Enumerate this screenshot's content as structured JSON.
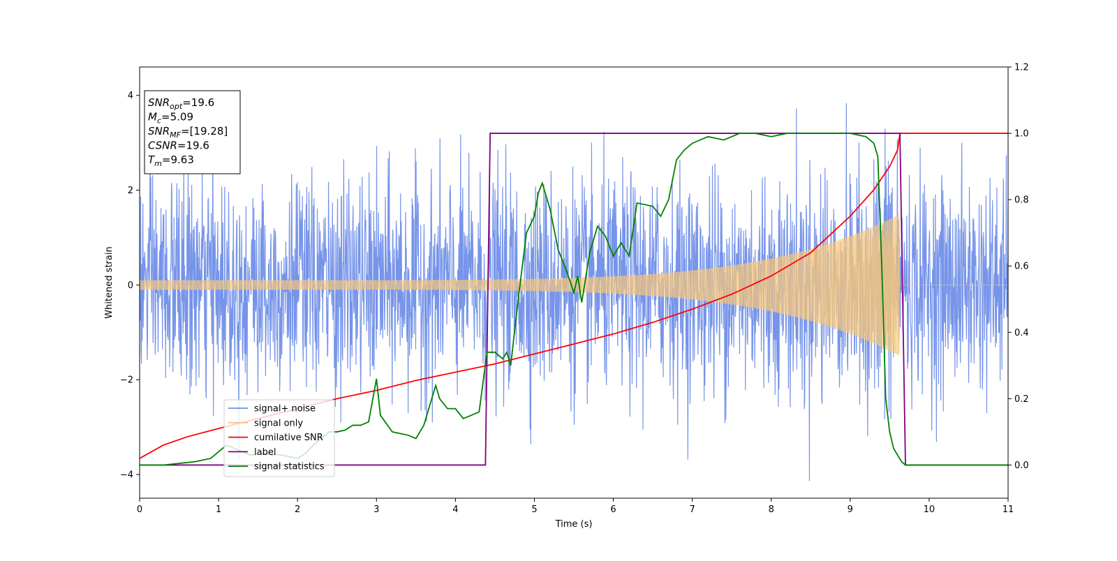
{
  "chart_data": {
    "type": "line",
    "xlabel": "Time (s)",
    "ylabel": "Whitened strain",
    "xlim": [
      0,
      11
    ],
    "ylim_left": [
      -4.5,
      4.6
    ],
    "ylim_right": [
      -0.1,
      1.2
    ],
    "xticks": [
      "0",
      "1",
      "2",
      "3",
      "4",
      "5",
      "6",
      "7",
      "8",
      "9",
      "10",
      "11"
    ],
    "yticks_left": [
      "−4",
      "−2",
      "0",
      "2",
      "4"
    ],
    "yticks_right": [
      "0.0",
      "0.2",
      "0.4",
      "0.6",
      "0.8",
      "1.0",
      "1.2"
    ],
    "grid": false,
    "legend_position": "lower-left",
    "info_box": {
      "position": "upper-left",
      "lines": [
        {
          "var": "SNR",
          "sub": "opt",
          "value": "=19.6"
        },
        {
          "var": "M",
          "sub": "c",
          "value": "=5.09"
        },
        {
          "var": "SNR",
          "sub": "MF",
          "value": "=[19.28]"
        },
        {
          "var": "CSNR",
          "sub": "",
          "value": "=19.6"
        },
        {
          "var": "T",
          "sub": "m",
          "value": "=9.63"
        }
      ]
    },
    "series": [
      {
        "name": "signal+ noise",
        "axis": "left",
        "color": "#6f8ee8",
        "kind": "noise",
        "noise_std": 1.1,
        "noise_max_abs": 4.2,
        "merger_time": 9.63,
        "chirp_amp_start": 0.1,
        "chirp_amp_end": 1.5
      },
      {
        "name": "signal only",
        "axis": "left",
        "color": "#f7c77a",
        "kind": "chirp",
        "merger_time": 9.63,
        "amp_start": 0.1,
        "amp_end": 1.5
      },
      {
        "name": "cumilative SNR",
        "axis": "right",
        "color": "#ff0000",
        "x": [
          0,
          0.3,
          0.6,
          1,
          1.5,
          2,
          2.5,
          3,
          3.5,
          4,
          4.5,
          5,
          5.5,
          6,
          6.5,
          7,
          7.5,
          8,
          8.5,
          9,
          9.3,
          9.5,
          9.6,
          9.63,
          11
        ],
        "y": [
          0.02,
          0.06,
          0.085,
          0.11,
          0.14,
          0.17,
          0.2,
          0.225,
          0.255,
          0.28,
          0.305,
          0.335,
          0.365,
          0.395,
          0.43,
          0.47,
          0.515,
          0.57,
          0.64,
          0.75,
          0.83,
          0.9,
          0.95,
          1.0,
          1.0
        ]
      },
      {
        "name": "label",
        "axis": "right",
        "color": "#800080",
        "x": [
          0,
          4.38,
          4.44,
          9.63,
          9.7,
          11
        ],
        "y": [
          0.0,
          0.0,
          1.0,
          1.0,
          0.0,
          0.0
        ]
      },
      {
        "name": "signal statistics",
        "axis": "right",
        "color": "#008000",
        "x": [
          0,
          0.3,
          0.5,
          0.7,
          0.9,
          1.0,
          1.1,
          1.2,
          1.4,
          1.6,
          1.8,
          2.0,
          2.1,
          2.2,
          2.3,
          2.4,
          2.5,
          2.6,
          2.7,
          2.8,
          2.9,
          3.0,
          3.05,
          3.2,
          3.4,
          3.5,
          3.6,
          3.7,
          3.75,
          3.8,
          3.9,
          4.0,
          4.1,
          4.2,
          4.3,
          4.4,
          4.5,
          4.6,
          4.65,
          4.7,
          4.8,
          4.9,
          5.0,
          5.05,
          5.1,
          5.2,
          5.3,
          5.4,
          5.5,
          5.55,
          5.6,
          5.7,
          5.8,
          5.9,
          6.0,
          6.1,
          6.2,
          6.3,
          6.5,
          6.6,
          6.7,
          6.8,
          6.9,
          7.0,
          7.2,
          7.4,
          7.6,
          7.8,
          8.0,
          8.2,
          8.5,
          8.8,
          9.0,
          9.2,
          9.3,
          9.35,
          9.4,
          9.45,
          9.5,
          9.55,
          9.6,
          9.65,
          9.7,
          11
        ],
        "y": [
          0.0,
          0.0,
          0.005,
          0.01,
          0.02,
          0.04,
          0.06,
          0.05,
          0.03,
          0.035,
          0.03,
          0.02,
          0.035,
          0.06,
          0.08,
          0.1,
          0.1,
          0.105,
          0.12,
          0.12,
          0.13,
          0.26,
          0.15,
          0.1,
          0.09,
          0.08,
          0.12,
          0.2,
          0.24,
          0.2,
          0.17,
          0.17,
          0.14,
          0.15,
          0.16,
          0.34,
          0.34,
          0.32,
          0.34,
          0.3,
          0.51,
          0.7,
          0.75,
          0.82,
          0.85,
          0.77,
          0.65,
          0.59,
          0.52,
          0.57,
          0.49,
          0.64,
          0.72,
          0.69,
          0.63,
          0.67,
          0.63,
          0.79,
          0.78,
          0.75,
          0.8,
          0.92,
          0.95,
          0.97,
          0.99,
          0.98,
          1.0,
          1.0,
          0.99,
          1.0,
          1.0,
          1.0,
          1.0,
          0.99,
          0.97,
          0.93,
          0.6,
          0.2,
          0.1,
          0.05,
          0.03,
          0.01,
          0.0,
          0.0
        ]
      }
    ]
  }
}
